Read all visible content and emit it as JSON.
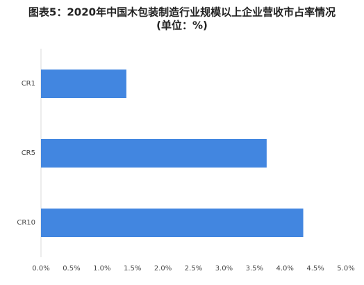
{
  "chart_data": {
    "type": "bar",
    "orientation": "horizontal",
    "title": "图表5：2020年中国木包装制造行业规模以上企业营收市占率情况",
    "subtitle": "(单位：%)",
    "categories": [
      "CR1",
      "CR5",
      "CR10"
    ],
    "values": [
      1.4,
      3.7,
      4.3
    ],
    "color": "#4286e0",
    "xlim": [
      0,
      5
    ],
    "xticks": [
      {
        "value": 0,
        "label": "0.0%"
      },
      {
        "value": 0.5,
        "label": "0.5%"
      },
      {
        "value": 1,
        "label": "1.0%"
      },
      {
        "value": 1.5,
        "label": "1.5%"
      },
      {
        "value": 2,
        "label": "2.0%"
      },
      {
        "value": 2.5,
        "label": "2.5%"
      },
      {
        "value": 3,
        "label": "3.0%"
      },
      {
        "value": 3.5,
        "label": "3.5%"
      },
      {
        "value": 4,
        "label": "4.0%"
      },
      {
        "value": 4.5,
        "label": "4.5%"
      },
      {
        "value": 5,
        "label": "5.0%"
      }
    ],
    "grid": false
  }
}
